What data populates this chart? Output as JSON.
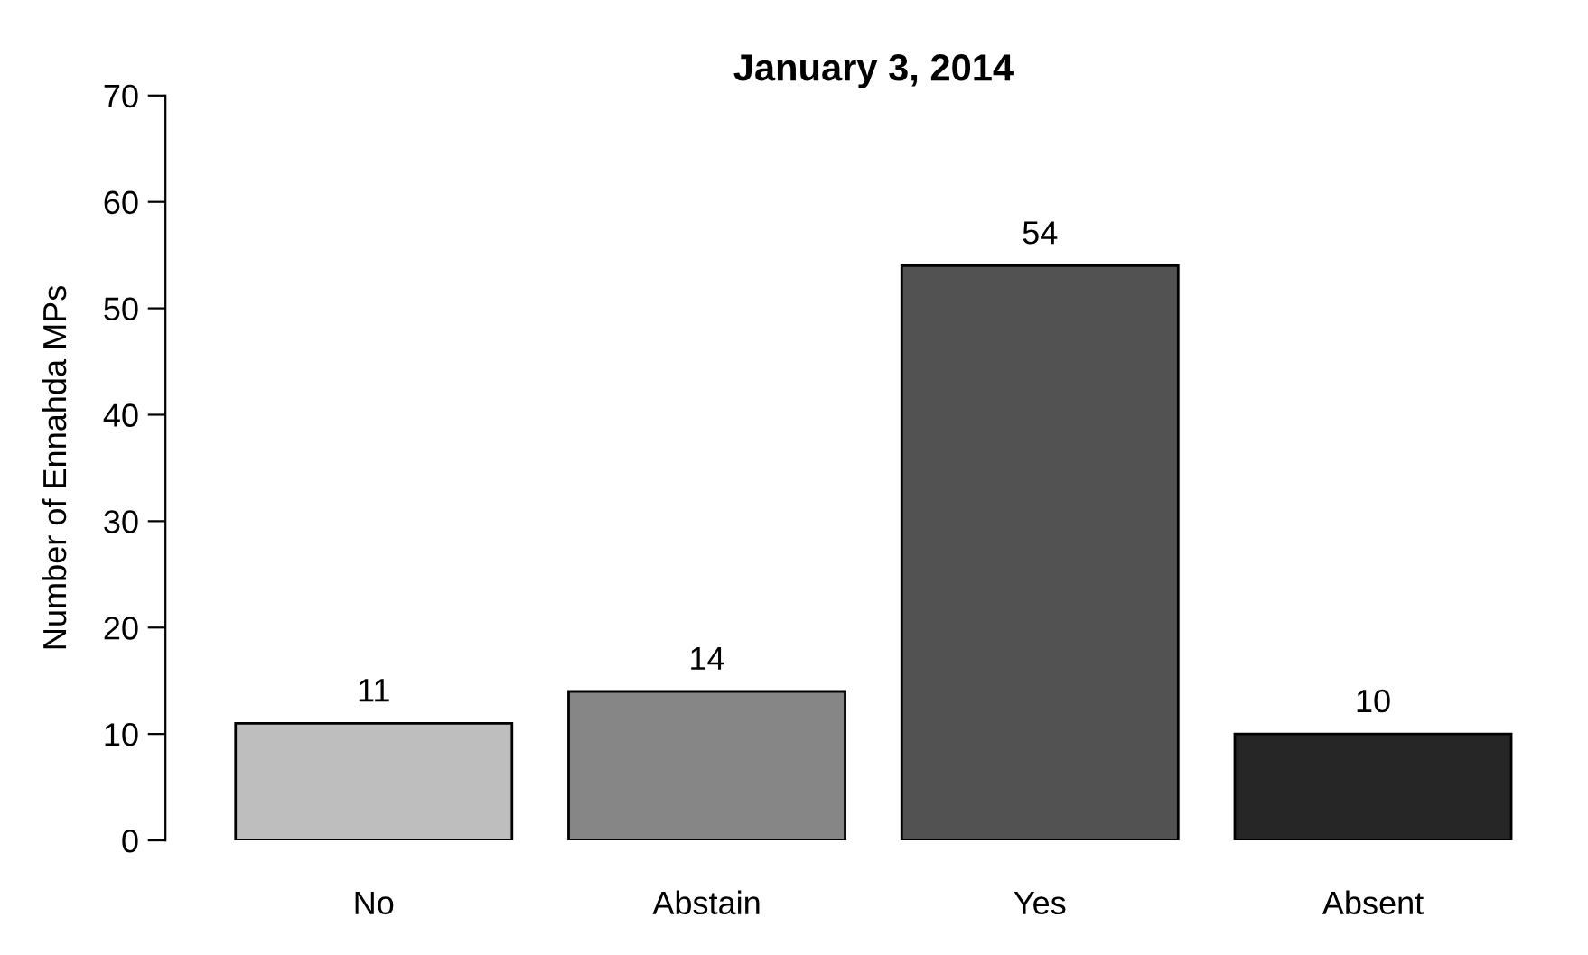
{
  "chart_data": {
    "type": "bar",
    "title": "January 3, 2014",
    "ylabel": "Number of Ennahda MPs",
    "categories": [
      "No",
      "Abstain",
      "Yes",
      "Absent"
    ],
    "values": [
      11,
      14,
      54,
      10
    ],
    "colors": [
      "#bebebe",
      "#868686",
      "#525252",
      "#262626"
    ],
    "ylim": [
      0,
      70
    ],
    "yticks": [
      0,
      10,
      20,
      30,
      40,
      50,
      60,
      70
    ],
    "grid": false,
    "data_labels": true
  }
}
